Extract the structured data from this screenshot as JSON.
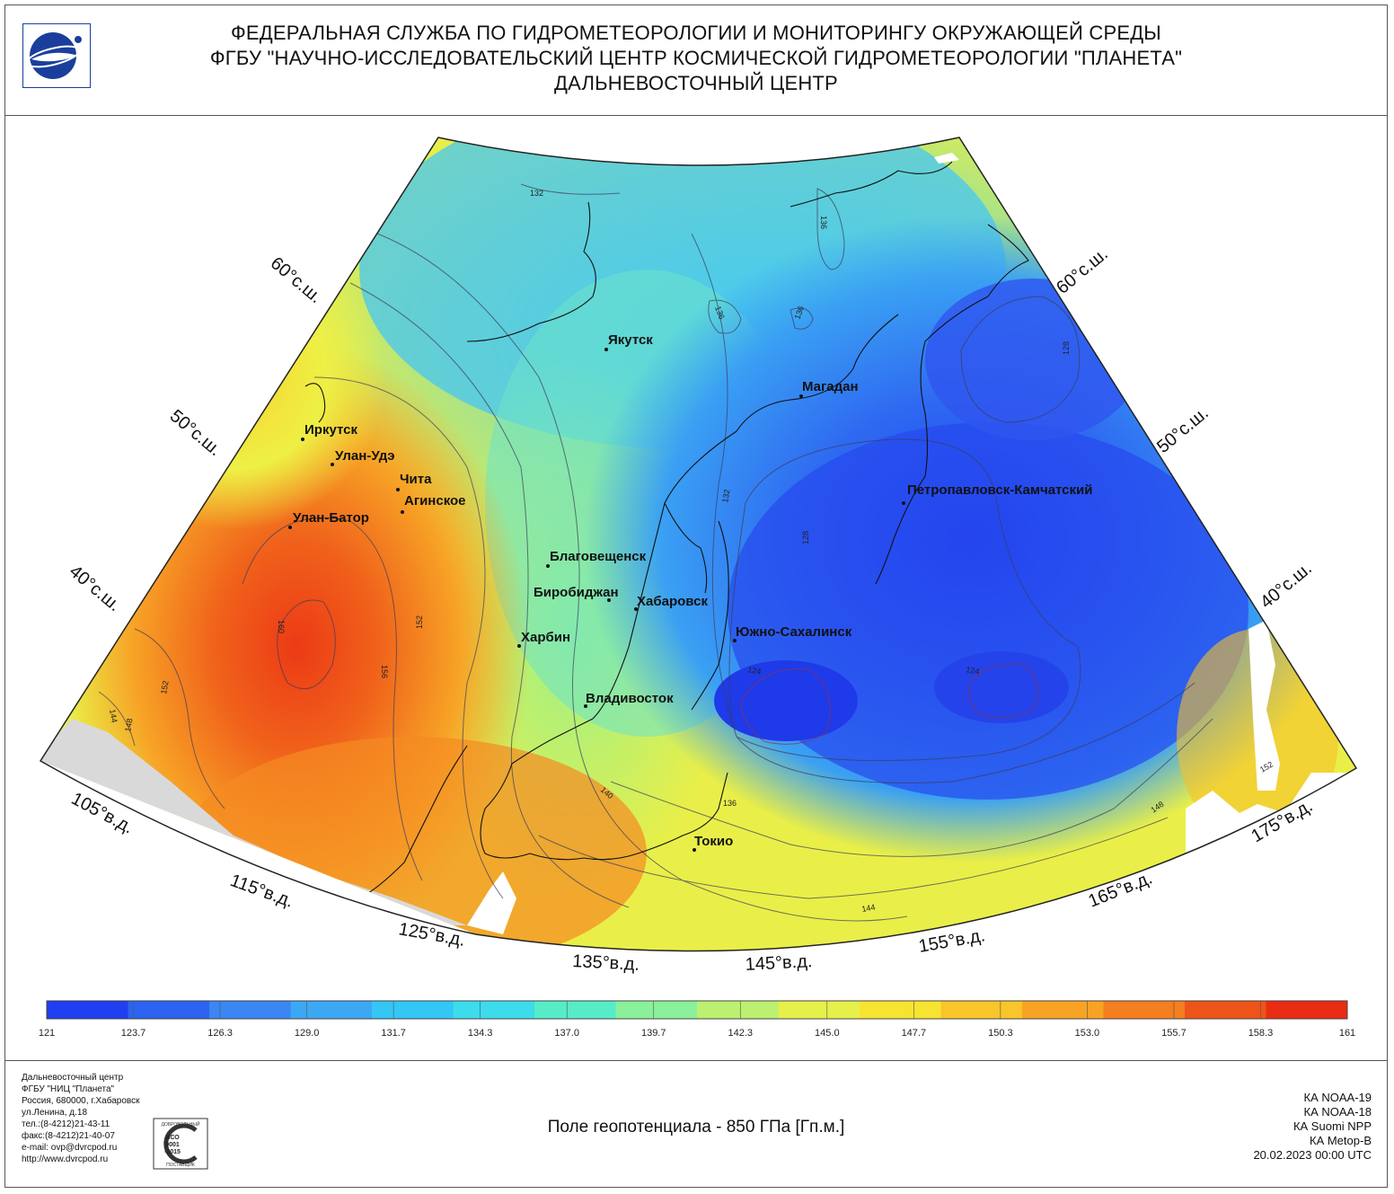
{
  "header": {
    "line1": "ФЕДЕРАЛЬНАЯ СЛУЖБА ПО ГИДРОМЕТЕОРОЛОГИИ И МОНИТОРИНГУ ОКРУЖАЮЩЕЙ СРЕДЫ",
    "line2": "ФГБУ \"НАУЧНО-ИССЛЕДОВАТЕЛЬСКИЙ ЦЕНТР КОСМИЧЕСКОЙ ГИДРОМЕТЕОРОЛОГИИ \"ПЛАНЕТА\"",
    "line3": "ДАЛЬНЕВОСТОЧНЫЙ ЦЕНТР"
  },
  "map": {
    "latitude_labels": [
      "60°с.ш.",
      "50°с.ш.",
      "40°с.ш.",
      "60°с.ш.",
      "50°с.ш.",
      "40°с.ш."
    ],
    "longitude_labels": [
      "105°в.д.",
      "115°в.д.",
      "125°в.д.",
      "135°в.д.",
      "145°в.д.",
      "155°в.д.",
      "165°в.д.",
      "175°в.д."
    ],
    "cities": [
      "Якутск",
      "Магадан",
      "Иркутск",
      "Улан-Удэ",
      "Чита",
      "Агинское",
      "Улан-Батор",
      "Петропавловск-Камчатский",
      "Благовещенск",
      "Биробиджан",
      "Хабаровск",
      "Харбин",
      "Южно-Сахалинск",
      "Владивосток",
      "Токио"
    ],
    "contour_labels": [
      "132",
      "136",
      "136",
      "136",
      "128",
      "160",
      "156",
      "152",
      "152",
      "148",
      "144",
      "132",
      "128",
      "124",
      "124",
      "140",
      "136",
      "144",
      "148",
      "152"
    ]
  },
  "color_scale": {
    "labels": [
      "121",
      "123.7",
      "126.3",
      "129.0",
      "131.7",
      "134.3",
      "137.0",
      "139.7",
      "142.3",
      "145.0",
      "147.7",
      "150.3",
      "153.0",
      "155.7",
      "158.3",
      "161"
    ],
    "colors": [
      "#1f3ff0",
      "#2c63f0",
      "#3a86f2",
      "#3ca8f4",
      "#34c6f4",
      "#3cdcec",
      "#56ecc8",
      "#8af09a",
      "#bcf070",
      "#e6f04a",
      "#f7e431",
      "#f9c52a",
      "#f8a324",
      "#f47e20",
      "#ee5419",
      "#e92c14"
    ]
  },
  "footer": {
    "org_lines": [
      "Дальневосточный центр",
      "ФГБУ \"НИЦ \"Планета\"",
      "Россия, 680000, г.Хабаровск",
      "ул.Ленина, д.18",
      "тел.:(8-4212)21-43-11",
      "факс:(8-4212)21-40-07",
      "e-mail: ovp@dvrcpod.ru",
      "http://www.dvrcpod.ru"
    ],
    "iso_lines": [
      "ДОБРОВОЛЬНЫЙ",
      "ИСО",
      "9001",
      "-2015",
      "ПОСТАВЩИК"
    ],
    "caption": "Поле геопотенциала - 850 ГПа [Гп.м.]",
    "satellites": [
      "КА NOAA-19",
      "КА NOAA-18",
      "КА Suomi NPP",
      "КА Metop-B"
    ],
    "datetime": "20.02.2023 00:00 UTC"
  }
}
